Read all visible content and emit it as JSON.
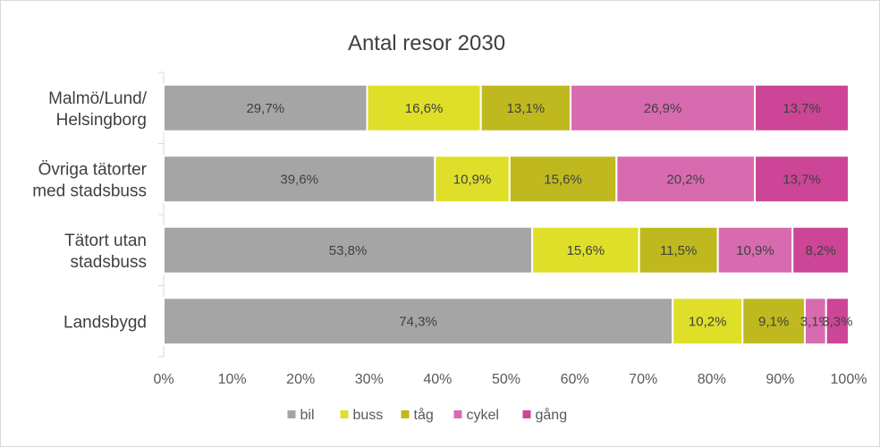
{
  "chart_data": {
    "type": "bar",
    "orientation": "horizontal",
    "stacked": "percent",
    "title": "Antal resor 2030",
    "categories": [
      [
        "Malmö/Lund/",
        "Helsingborg"
      ],
      [
        "Övriga tätorter",
        "med stadsbuss"
      ],
      [
        "Tätort utan",
        "stadsbuss"
      ],
      [
        "Landsbygd"
      ]
    ],
    "series": [
      {
        "name": "bil",
        "color": "#a5a5a5",
        "values": [
          29.7,
          39.6,
          53.8,
          74.3
        ],
        "labels": [
          "29,7%",
          "39,6%",
          "53,8%",
          "74,3%"
        ]
      },
      {
        "name": "buss",
        "color": "#dfdf2a",
        "values": [
          16.6,
          10.9,
          15.6,
          10.2
        ],
        "labels": [
          "16,6%",
          "10,9%",
          "15,6%",
          "10,2%"
        ]
      },
      {
        "name": "tåg",
        "color": "#bfb91f",
        "values": [
          13.1,
          15.6,
          11.5,
          9.1
        ],
        "labels": [
          "13,1%",
          "15,6%",
          "11,5%",
          "9,1%"
        ]
      },
      {
        "name": "cykel",
        "color": "#d86bb0",
        "values": [
          26.9,
          20.2,
          10.9,
          3.1
        ],
        "labels": [
          "26,9%",
          "20,2%",
          "10,9%",
          "3,1%"
        ]
      },
      {
        "name": "gång",
        "color": "#cc4596",
        "values": [
          13.7,
          13.7,
          8.2,
          3.3
        ],
        "labels": [
          "13,7%",
          "13,7%",
          "8,2%",
          "3,3%"
        ]
      }
    ],
    "x_ticks": [
      "0%",
      "10%",
      "20%",
      "30%",
      "40%",
      "50%",
      "60%",
      "70%",
      "80%",
      "90%",
      "100%"
    ],
    "xlim": [
      0,
      100
    ],
    "grid": false,
    "legend": "bottom"
  }
}
